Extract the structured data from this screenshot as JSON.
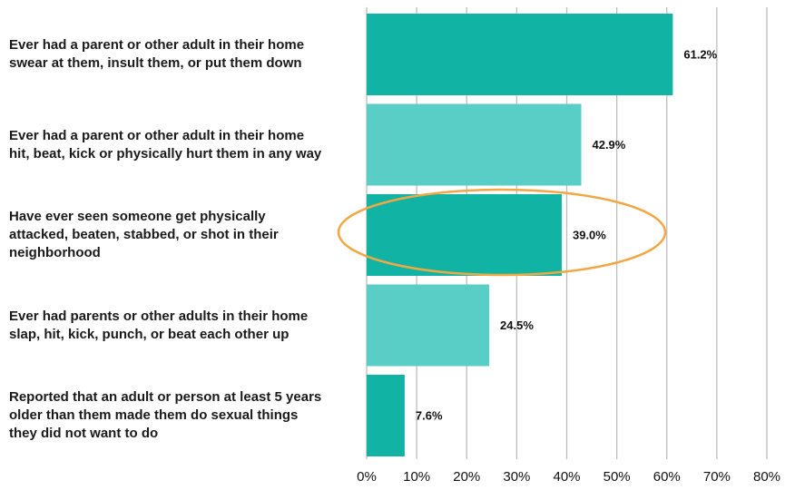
{
  "chart_data": {
    "type": "barh",
    "categories": [
      "Ever had a parent or other adult in their home swear at them, insult them, or put them down",
      "Ever had a parent or other adult in their home hit, beat, kick or physically hurt them in any way",
      "Have ever seen someone get physically attacked, beaten, stabbed, or shot in their neighborhood",
      "Ever had parents or other adults in their home slap, hit, kick, punch, or beat each other up",
      "Reported that an adult or person at least 5 years older than them made them do sexual things they did not want to do"
    ],
    "values": [
      61.2,
      42.9,
      39.0,
      24.5,
      7.6
    ],
    "value_labels": [
      "61.2%",
      "42.9%",
      "39.0%",
      "24.5%",
      "7.6%"
    ],
    "colors": [
      "#10b3a4",
      "#58cec7",
      "#10b3a4",
      "#58cec7",
      "#10b3a4"
    ],
    "xlim": [
      0,
      80
    ],
    "xticks": [
      {
        "value": 0,
        "label": "0%"
      },
      {
        "value": 10,
        "label": "10%"
      },
      {
        "value": 20,
        "label": "20%"
      },
      {
        "value": 30,
        "label": "30%"
      },
      {
        "value": 40,
        "label": "40%"
      },
      {
        "value": 50,
        "label": "50%"
      },
      {
        "value": 60,
        "label": "60%"
      },
      {
        "value": 70,
        "label": "70%"
      },
      {
        "value": 80,
        "label": "80%"
      }
    ],
    "grid": true
  }
}
